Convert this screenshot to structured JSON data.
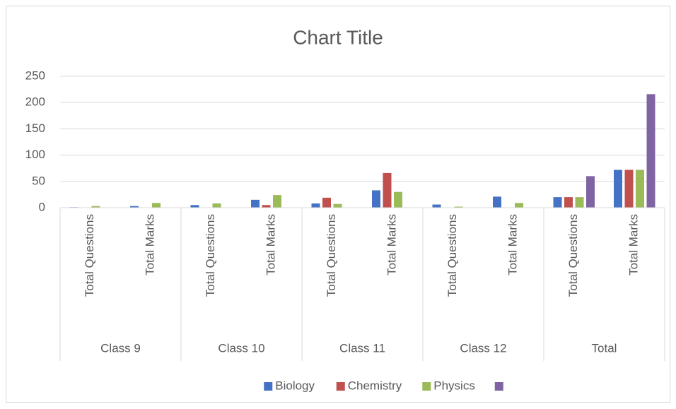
{
  "chart_data": {
    "type": "bar",
    "title": "Chart Title",
    "categories": [
      "Total Questions",
      "Total Marks",
      "Total Questions",
      "Total Marks",
      "Total Questions",
      "Total Marks",
      "Total Questions",
      "Total Marks",
      "Total Questions",
      "Total Marks"
    ],
    "category_groups": [
      "Class 9",
      "Class 10",
      "Class 11",
      "Class 12",
      "Total"
    ],
    "series": [
      {
        "name": "Biology",
        "color": "#4472c4",
        "values": [
          1,
          3,
          5,
          15,
          8,
          33,
          6,
          21,
          20,
          72
        ]
      },
      {
        "name": "Chemistry",
        "color": "#c0504d",
        "values": [
          0,
          0,
          0,
          5,
          19,
          66,
          0,
          0,
          20,
          72
        ]
      },
      {
        "name": "Physics",
        "color": "#9bbb59",
        "values": [
          3,
          9,
          8,
          24,
          7,
          30,
          2,
          9,
          20,
          72
        ]
      },
      {
        "color": "#8064a2",
        "values": [
          0,
          0,
          0,
          0,
          0,
          0,
          0,
          0,
          60,
          216
        ]
      }
    ],
    "ylim": [
      0,
      250
    ],
    "yticks": [
      0,
      50,
      100,
      150,
      200,
      250
    ],
    "grid": true,
    "legend": "bottom"
  }
}
